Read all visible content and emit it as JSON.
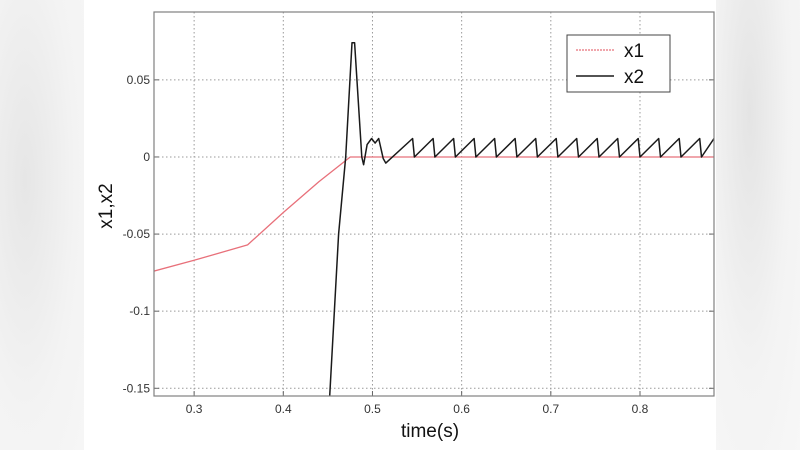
{
  "chart_data": {
    "type": "line",
    "title": "",
    "xlabel": "time(s)",
    "ylabel": "x1,x2",
    "xlim": [
      0.255,
      0.883
    ],
    "ylim": [
      -0.155,
      0.094
    ],
    "grid": true,
    "legend_position": "upper right",
    "x_ticks": [
      "0.3",
      "0.4",
      "0.5",
      "0.6",
      "0.7",
      "0.8"
    ],
    "y_ticks": [
      "0.05",
      "0",
      "-0.05",
      "-0.1",
      "-0.15"
    ],
    "series": [
      {
        "name": "x1",
        "color": "#e8707a",
        "style": "dotted-thin",
        "points": [
          [
            0.255,
            -0.074
          ],
          [
            0.3,
            -0.067
          ],
          [
            0.36,
            -0.057
          ],
          [
            0.4,
            -0.036
          ],
          [
            0.44,
            -0.016
          ],
          [
            0.475,
            0.0
          ],
          [
            0.883,
            0.0
          ]
        ]
      },
      {
        "name": "x2",
        "color": "#1a1a1a",
        "style": "solid",
        "points": [
          [
            0.452,
            -0.155
          ],
          [
            0.462,
            -0.05
          ],
          [
            0.47,
            0.0
          ],
          [
            0.477,
            0.074
          ],
          [
            0.48,
            0.074
          ],
          [
            0.488,
            0.0
          ],
          [
            0.49,
            -0.005
          ],
          [
            0.494,
            0.008
          ],
          [
            0.499,
            0.012
          ],
          [
            0.503,
            0.009
          ],
          [
            0.507,
            0.012
          ],
          [
            0.512,
            -0.001
          ],
          [
            0.515,
            -0.004
          ],
          [
            0.545,
            0.012
          ],
          [
            0.547,
            0.0
          ],
          [
            0.568,
            0.012
          ],
          [
            0.57,
            0.0
          ],
          [
            0.591,
            0.012
          ],
          [
            0.593,
            0.0
          ],
          [
            0.614,
            0.012
          ],
          [
            0.616,
            0.0
          ],
          [
            0.637,
            0.012
          ],
          [
            0.639,
            0.0
          ],
          [
            0.66,
            0.012
          ],
          [
            0.662,
            0.0
          ],
          [
            0.683,
            0.012
          ],
          [
            0.685,
            0.0
          ],
          [
            0.706,
            0.012
          ],
          [
            0.708,
            0.0
          ],
          [
            0.729,
            0.012
          ],
          [
            0.731,
            0.0
          ],
          [
            0.752,
            0.012
          ],
          [
            0.754,
            0.0
          ],
          [
            0.775,
            0.012
          ],
          [
            0.777,
            0.0
          ],
          [
            0.798,
            0.012
          ],
          [
            0.8,
            0.0
          ],
          [
            0.821,
            0.012
          ],
          [
            0.823,
            0.0
          ],
          [
            0.844,
            0.012
          ],
          [
            0.846,
            0.0
          ],
          [
            0.867,
            0.012
          ],
          [
            0.869,
            0.0
          ],
          [
            0.883,
            0.012
          ]
        ]
      }
    ]
  },
  "legend": {
    "items": [
      {
        "label": "x1"
      },
      {
        "label": "x2"
      }
    ]
  },
  "axes": {
    "xlabel": "time(s)",
    "ylabel": "x1,x2"
  },
  "colors": {
    "x1": "#e8707a",
    "x2": "#1a1a1a",
    "grid": "#9a9a9a",
    "frame": "#808080"
  }
}
